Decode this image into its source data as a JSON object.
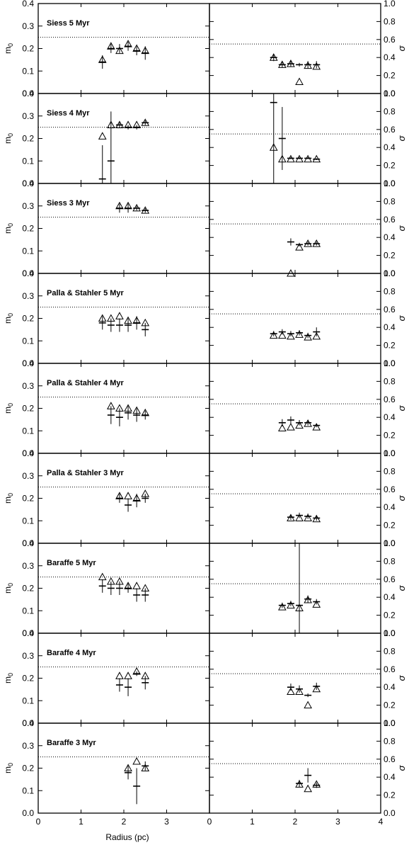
{
  "figure": {
    "xlabel": "Radius (pc)",
    "left_ylabel": "m",
    "left_ylabel_sub": "0",
    "right_ylabel": "σ",
    "x_ticks": [
      "0",
      "1",
      "2",
      "3",
      "0",
      "1",
      "2",
      "3",
      "4"
    ]
  },
  "chart_data": [
    {
      "type": "scatter",
      "title": "Siess 5 Myr",
      "left": {
        "ylabel": "m0",
        "xlim": [
          0,
          4
        ],
        "ylim": [
          0,
          0.4
        ],
        "reference": 0.25,
        "triangles": {
          "x": [
            1.5,
            1.7,
            1.9,
            2.1,
            2.3,
            2.5
          ],
          "y": [
            0.15,
            0.21,
            0.19,
            0.22,
            0.2,
            0.19
          ]
        },
        "crosses": {
          "x": [
            1.5,
            1.7,
            1.9,
            2.1,
            2.3,
            2.5
          ],
          "y": [
            0.14,
            0.2,
            0.2,
            0.21,
            0.19,
            0.18
          ],
          "err": [
            0.03,
            0.02,
            0.02,
            0.02,
            0.02,
            0.03
          ]
        }
      },
      "right": {
        "ylabel": "σ",
        "xlim": [
          0,
          4
        ],
        "ylim": [
          0,
          1.0
        ],
        "reference": 0.55,
        "triangles": {
          "x": [
            1.5,
            1.7,
            1.9,
            2.1,
            2.3,
            2.5
          ],
          "y": [
            0.4,
            0.32,
            0.33,
            0.13,
            0.31,
            0.3
          ]
        },
        "crosses": {
          "x": [
            1.5,
            1.7,
            1.9,
            2.1,
            2.3,
            2.5
          ],
          "y": [
            0.4,
            0.32,
            0.33,
            0.32,
            0.32,
            0.32
          ],
          "err": [
            0.04,
            0.03,
            0.03,
            0.02,
            0.04,
            0.04
          ]
        }
      }
    },
    {
      "type": "scatter",
      "title": "Siess 4 Myr",
      "left": {
        "ylabel": "m0",
        "xlim": [
          0,
          4
        ],
        "ylim": [
          0,
          0.4
        ],
        "reference": 0.25,
        "triangles": {
          "x": [
            1.5,
            1.7,
            1.9,
            2.1,
            2.3,
            2.5
          ],
          "y": [
            0.21,
            0.26,
            0.26,
            0.26,
            0.26,
            0.27
          ]
        },
        "crosses": {
          "x": [
            1.5,
            1.7,
            1.9,
            2.1,
            2.3,
            2.5
          ],
          "y": [
            0.02,
            0.1,
            0.26,
            0.25,
            0.25,
            0.27
          ],
          "err": [
            0.15,
            0.22,
            0.01,
            0.01,
            0.01,
            0.01
          ]
        }
      },
      "right": {
        "ylabel": "σ",
        "xlim": [
          0,
          4
        ],
        "ylim": [
          0,
          1.0
        ],
        "reference": 0.55,
        "triangles": {
          "x": [
            1.5,
            1.7,
            1.9,
            2.1,
            2.3,
            2.5
          ],
          "y": [
            0.4,
            0.27,
            0.27,
            0.27,
            0.27,
            0.27
          ]
        },
        "crosses": {
          "x": [
            1.5,
            1.7,
            1.9,
            2.1,
            2.3,
            2.5
          ],
          "y": [
            0.9,
            0.5,
            0.28,
            0.28,
            0.28,
            0.27
          ],
          "err": [
            0.9,
            0.35,
            0.01,
            0.01,
            0.01,
            0.01
          ]
        }
      }
    },
    {
      "type": "scatter",
      "title": "Siess 3 Myr",
      "left": {
        "ylabel": "m0",
        "xlim": [
          0,
          4
        ],
        "ylim": [
          0,
          0.4
        ],
        "reference": 0.25,
        "triangles": {
          "x": [
            1.9,
            2.1,
            2.3,
            2.5
          ],
          "y": [
            0.3,
            0.3,
            0.29,
            0.28
          ]
        },
        "crosses": {
          "x": [
            1.9,
            2.1,
            2.3,
            2.5
          ],
          "y": [
            0.29,
            0.29,
            0.29,
            0.28
          ],
          "err": [
            0.02,
            0.02,
            0.01,
            0.01
          ]
        }
      },
      "right": {
        "ylabel": "σ",
        "xlim": [
          0,
          4
        ],
        "ylim": [
          0,
          1.0
        ],
        "reference": 0.55,
        "triangles": {
          "x": [
            1.9,
            2.1,
            2.3,
            2.5
          ],
          "y": [
            0.0,
            0.29,
            0.33,
            0.33
          ]
        },
        "crosses": {
          "x": [
            1.9,
            2.1,
            2.3,
            2.5
          ],
          "y": [
            0.35,
            0.32,
            0.33,
            0.33
          ],
          "err": [
            0.04,
            0.02,
            0.02,
            0.02
          ]
        }
      }
    },
    {
      "type": "scatter",
      "title": "Palla & Stahler 5 Myr",
      "left": {
        "ylabel": "m0",
        "xlim": [
          0,
          4
        ],
        "ylim": [
          0,
          0.4
        ],
        "reference": 0.25,
        "triangles": {
          "x": [
            1.5,
            1.7,
            1.9,
            2.1,
            2.3,
            2.5
          ],
          "y": [
            0.2,
            0.2,
            0.21,
            0.19,
            0.19,
            0.18
          ]
        },
        "crosses": {
          "x": [
            1.5,
            1.7,
            1.9,
            2.1,
            2.3,
            2.5
          ],
          "y": [
            0.18,
            0.17,
            0.17,
            0.17,
            0.18,
            0.15
          ],
          "err": [
            0.03,
            0.03,
            0.03,
            0.03,
            0.03,
            0.03
          ]
        }
      },
      "right": {
        "ylabel": "σ",
        "xlim": [
          0,
          4
        ],
        "ylim": [
          0,
          1.0
        ],
        "reference": 0.55,
        "triangles": {
          "x": [
            1.5,
            1.7,
            1.9,
            2.1,
            2.3,
            2.5
          ],
          "y": [
            0.31,
            0.31,
            0.3,
            0.32,
            0.29,
            0.3
          ]
        },
        "crosses": {
          "x": [
            1.5,
            1.7,
            1.9,
            2.1,
            2.3,
            2.5
          ],
          "y": [
            0.33,
            0.35,
            0.33,
            0.34,
            0.31,
            0.35
          ],
          "err": [
            0.03,
            0.03,
            0.03,
            0.03,
            0.03,
            0.05
          ]
        }
      }
    },
    {
      "type": "scatter",
      "title": "Palla & Stahler 4 Myr",
      "left": {
        "ylabel": "m0",
        "xlim": [
          0,
          4
        ],
        "ylim": [
          0,
          0.4
        ],
        "reference": 0.25,
        "triangles": {
          "x": [
            1.7,
            1.9,
            2.1,
            2.3,
            2.5
          ],
          "y": [
            0.21,
            0.2,
            0.2,
            0.19,
            0.18
          ]
        },
        "crosses": {
          "x": [
            1.7,
            1.9,
            2.1,
            2.3,
            2.5
          ],
          "y": [
            0.17,
            0.16,
            0.18,
            0.17,
            0.17
          ],
          "err": [
            0.04,
            0.04,
            0.03,
            0.03,
            0.02
          ]
        }
      },
      "right": {
        "ylabel": "σ",
        "xlim": [
          0,
          4
        ],
        "ylim": [
          0,
          1.0
        ],
        "reference": 0.55,
        "triangles": {
          "x": [
            1.7,
            1.9,
            2.1,
            2.3,
            2.5
          ],
          "y": [
            0.28,
            0.29,
            0.31,
            0.33,
            0.29
          ]
        },
        "crosses": {
          "x": [
            1.7,
            1.9,
            2.1,
            2.3,
            2.5
          ],
          "y": [
            0.34,
            0.37,
            0.34,
            0.34,
            0.31
          ],
          "err": [
            0.04,
            0.04,
            0.03,
            0.03,
            0.02
          ]
        }
      }
    },
    {
      "type": "scatter",
      "title": "Palla & Stahler 3 Myr",
      "left": {
        "ylabel": "m0",
        "xlim": [
          0,
          4
        ],
        "ylim": [
          0,
          0.4
        ],
        "reference": 0.25,
        "triangles": {
          "x": [
            1.9,
            2.1,
            2.3,
            2.5
          ],
          "y": [
            0.21,
            0.21,
            0.2,
            0.22
          ]
        },
        "crosses": {
          "x": [
            1.9,
            2.1,
            2.3,
            2.5
          ],
          "y": [
            0.2,
            0.17,
            0.19,
            0.2
          ],
          "err": [
            0.02,
            0.03,
            0.03,
            0.02
          ]
        }
      },
      "right": {
        "ylabel": "σ",
        "xlim": [
          0,
          4
        ],
        "ylim": [
          0,
          1.0
        ],
        "reference": 0.55,
        "triangles": {
          "x": [
            1.9,
            2.1,
            2.3,
            2.5
          ],
          "y": [
            0.28,
            0.28,
            0.28,
            0.27
          ]
        },
        "crosses": {
          "x": [
            1.9,
            2.1,
            2.3,
            2.5
          ],
          "y": [
            0.29,
            0.31,
            0.3,
            0.28
          ],
          "err": [
            0.03,
            0.03,
            0.03,
            0.03
          ]
        }
      }
    },
    {
      "type": "scatter",
      "title": "Baraffe 5 Myr",
      "left": {
        "ylabel": "m0",
        "xlim": [
          0,
          4
        ],
        "ylim": [
          0,
          0.4
        ],
        "reference": 0.25,
        "triangles": {
          "x": [
            1.5,
            1.7,
            1.9,
            2.1,
            2.3,
            2.5
          ],
          "y": [
            0.25,
            0.23,
            0.23,
            0.21,
            0.21,
            0.2
          ]
        },
        "crosses": {
          "x": [
            1.5,
            1.7,
            1.9,
            2.1,
            2.3,
            2.5
          ],
          "y": [
            0.21,
            0.2,
            0.2,
            0.2,
            0.17,
            0.17
          ],
          "err": [
            0.03,
            0.03,
            0.03,
            0.02,
            0.03,
            0.03
          ]
        }
      },
      "right": {
        "ylabel": "σ",
        "xlim": [
          0,
          4
        ],
        "ylim": [
          0,
          1.0
        ],
        "reference": 0.55,
        "triangles": {
          "x": [
            1.7,
            1.9,
            2.1,
            2.3,
            2.5
          ],
          "y": [
            0.29,
            0.31,
            0.28,
            0.37,
            0.32
          ]
        },
        "crosses": {
          "x": [
            1.7,
            1.9,
            2.1,
            2.3,
            2.5
          ],
          "y": [
            0.31,
            0.33,
            0.31,
            0.38,
            0.35
          ],
          "err": [
            0.03,
            0.03,
            0.7,
            0.04,
            0.03
          ]
        }
      }
    },
    {
      "type": "scatter",
      "title": "Baraffe 4 Myr",
      "left": {
        "ylabel": "m0",
        "xlim": [
          0,
          4
        ],
        "ylim": [
          0,
          0.4
        ],
        "reference": 0.25,
        "triangles": {
          "x": [
            1.9,
            2.1,
            2.3,
            2.5
          ],
          "y": [
            0.21,
            0.21,
            0.23,
            0.21
          ]
        },
        "crosses": {
          "x": [
            1.9,
            2.1,
            2.3,
            2.5
          ],
          "y": [
            0.17,
            0.16,
            0.22,
            0.18
          ],
          "err": [
            0.03,
            0.04,
            0.01,
            0.03
          ]
        }
      },
      "right": {
        "ylabel": "σ",
        "xlim": [
          0,
          4
        ],
        "ylim": [
          0,
          1.0
        ],
        "reference": 0.55,
        "triangles": {
          "x": [
            1.9,
            2.1,
            2.3,
            2.5
          ],
          "y": [
            0.35,
            0.35,
            0.2,
            0.38
          ]
        },
        "crosses": {
          "x": [
            1.9,
            2.1,
            2.3,
            2.5
          ],
          "y": [
            0.4,
            0.38,
            0.31,
            0.41
          ],
          "err": [
            0.04,
            0.04,
            0.02,
            0.04
          ]
        }
      }
    },
    {
      "type": "scatter",
      "title": "Baraffe 3 Myr",
      "left": {
        "ylabel": "m0",
        "xlim": [
          0,
          4
        ],
        "ylim": [
          0,
          0.4
        ],
        "reference": 0.25,
        "triangles": {
          "x": [
            2.1,
            2.3,
            2.5
          ],
          "y": [
            0.2,
            0.23,
            0.2
          ]
        },
        "crosses": {
          "x": [
            2.1,
            2.3,
            2.5
          ],
          "y": [
            0.18,
            0.12,
            0.21
          ],
          "err": [
            0.03,
            0.08,
            0.02
          ]
        }
      },
      "right": {
        "ylabel": "σ",
        "xlim": [
          0,
          4
        ],
        "ylim": [
          0,
          1.0
        ],
        "reference": 0.55,
        "triangles": {
          "x": [
            2.1,
            2.3,
            2.5
          ],
          "y": [
            0.32,
            0.27,
            0.32
          ]
        },
        "crosses": {
          "x": [
            2.1,
            2.3,
            2.5
          ],
          "y": [
            0.33,
            0.42,
            0.31
          ],
          "err": [
            0.04,
            0.08,
            0.03
          ]
        }
      }
    }
  ]
}
